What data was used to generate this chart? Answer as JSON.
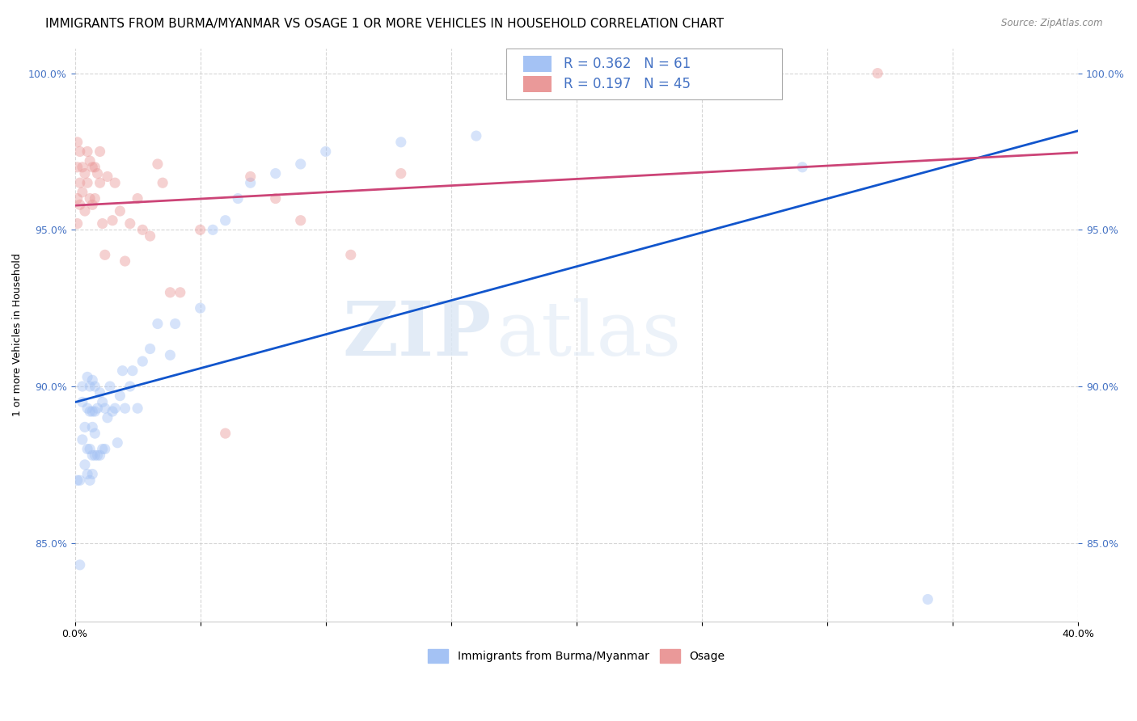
{
  "title": "IMMIGRANTS FROM BURMA/MYANMAR VS OSAGE 1 OR MORE VEHICLES IN HOUSEHOLD CORRELATION CHART",
  "source": "Source: ZipAtlas.com",
  "ylabel": "1 or more Vehicles in Household",
  "xlim": [
    0.0,
    0.4
  ],
  "ylim": [
    0.825,
    1.008
  ],
  "xticks": [
    0.0,
    0.05,
    0.1,
    0.15,
    0.2,
    0.25,
    0.3,
    0.35,
    0.4
  ],
  "xticklabels": [
    "0.0%",
    "",
    "",
    "",
    "",
    "",
    "",
    "",
    "40.0%"
  ],
  "yticks": [
    0.85,
    0.9,
    0.95,
    1.0
  ],
  "yticklabels": [
    "85.0%",
    "90.0%",
    "95.0%",
    "100.0%"
  ],
  "blue_R": 0.362,
  "blue_N": 61,
  "pink_R": 0.197,
  "pink_N": 45,
  "blue_color": "#a4c2f4",
  "pink_color": "#ea9999",
  "blue_line_color": "#1155cc",
  "pink_line_color": "#cc4477",
  "blue_scatter_x": [
    0.001,
    0.002,
    0.002,
    0.003,
    0.003,
    0.003,
    0.004,
    0.004,
    0.005,
    0.005,
    0.005,
    0.005,
    0.006,
    0.006,
    0.006,
    0.006,
    0.007,
    0.007,
    0.007,
    0.007,
    0.007,
    0.008,
    0.008,
    0.008,
    0.008,
    0.009,
    0.009,
    0.01,
    0.01,
    0.011,
    0.011,
    0.012,
    0.012,
    0.013,
    0.014,
    0.015,
    0.016,
    0.017,
    0.018,
    0.019,
    0.02,
    0.022,
    0.023,
    0.025,
    0.027,
    0.03,
    0.033,
    0.038,
    0.04,
    0.05,
    0.055,
    0.06,
    0.065,
    0.07,
    0.08,
    0.09,
    0.1,
    0.13,
    0.16,
    0.29,
    0.34
  ],
  "blue_scatter_y": [
    0.87,
    0.843,
    0.87,
    0.883,
    0.895,
    0.9,
    0.875,
    0.887,
    0.872,
    0.88,
    0.893,
    0.903,
    0.87,
    0.88,
    0.892,
    0.9,
    0.872,
    0.878,
    0.887,
    0.892,
    0.902,
    0.878,
    0.885,
    0.892,
    0.9,
    0.878,
    0.893,
    0.878,
    0.898,
    0.88,
    0.895,
    0.88,
    0.893,
    0.89,
    0.9,
    0.892,
    0.893,
    0.882,
    0.897,
    0.905,
    0.893,
    0.9,
    0.905,
    0.893,
    0.908,
    0.912,
    0.92,
    0.91,
    0.92,
    0.925,
    0.95,
    0.953,
    0.96,
    0.965,
    0.968,
    0.971,
    0.975,
    0.978,
    0.98,
    0.97,
    0.832
  ],
  "pink_scatter_x": [
    0.001,
    0.001,
    0.001,
    0.001,
    0.002,
    0.002,
    0.002,
    0.003,
    0.003,
    0.004,
    0.004,
    0.005,
    0.005,
    0.006,
    0.006,
    0.007,
    0.007,
    0.008,
    0.008,
    0.009,
    0.01,
    0.01,
    0.011,
    0.012,
    0.013,
    0.015,
    0.016,
    0.018,
    0.02,
    0.022,
    0.025,
    0.027,
    0.03,
    0.033,
    0.035,
    0.038,
    0.042,
    0.05,
    0.06,
    0.07,
    0.08,
    0.09,
    0.11,
    0.13,
    0.32
  ],
  "pink_scatter_y": [
    0.952,
    0.96,
    0.97,
    0.978,
    0.958,
    0.965,
    0.975,
    0.962,
    0.97,
    0.956,
    0.968,
    0.965,
    0.975,
    0.96,
    0.972,
    0.958,
    0.97,
    0.96,
    0.97,
    0.968,
    0.965,
    0.975,
    0.952,
    0.942,
    0.967,
    0.953,
    0.965,
    0.956,
    0.94,
    0.952,
    0.96,
    0.95,
    0.948,
    0.971,
    0.965,
    0.93,
    0.93,
    0.95,
    0.885,
    0.967,
    0.96,
    0.953,
    0.942,
    0.968,
    1.0
  ],
  "watermark_zip": "ZIP",
  "watermark_atlas": "atlas",
  "background_color": "#ffffff",
  "grid_color": "#cccccc",
  "title_fontsize": 11,
  "axis_label_fontsize": 9,
  "tick_fontsize": 9,
  "marker_size": 90,
  "marker_alpha": 0.45,
  "legend_label1": "Immigrants from Burma/Myanmar",
  "legend_label2": "Osage"
}
